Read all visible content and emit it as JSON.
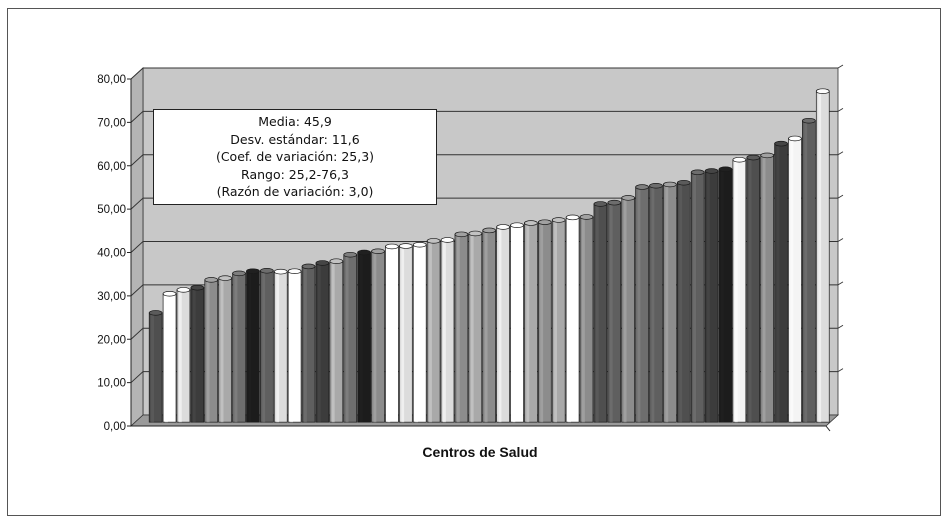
{
  "chart_data": {
    "type": "bar",
    "title": "",
    "xlabel": "Centros de Salud",
    "ylabel": "",
    "ylim": [
      0,
      80
    ],
    "yticks": [
      "0,00",
      "10,00",
      "20,00",
      "30,00",
      "40,00",
      "50,00",
      "60,00",
      "70,00",
      "80,00"
    ],
    "grid": true,
    "legend": "none",
    "values": [
      25.2,
      29.6,
      30.5,
      31.0,
      32.8,
      33.2,
      34.3,
      34.8,
      34.9,
      34.7,
      34.8,
      35.9,
      36.7,
      37.1,
      38.6,
      39.1,
      39.4,
      40.5,
      40.6,
      40.9,
      41.8,
      42.0,
      43.3,
      43.5,
      44.2,
      45.0,
      45.4,
      45.9,
      46.1,
      46.6,
      47.2,
      47.3,
      50.3,
      50.6,
      51.7,
      54.2,
      54.5,
      54.8,
      55.2,
      57.6,
      57.9,
      58.3,
      60.5,
      61.0,
      61.5,
      64.2,
      65.4,
      69.5,
      76.3
    ],
    "annotation": {
      "lines": [
        "Media: 45,9",
        "Desv. estándar: 11,6",
        "(Coef. de variación: 25,3)",
        "Rango: 25,2-76,3",
        "(Razón de variación: 3,0)"
      ]
    },
    "colors": {
      "wall": "#c8c8c8",
      "floor": "#9a9a9a",
      "gridline": "#333333",
      "bar_shades": [
        "#4f4f4f",
        "#f4f4f4",
        "#dcdcdc",
        "#3c3c3c",
        "#8c8c8c",
        "#a9a9a9",
        "#1c1c1c",
        "#5f5f5f",
        "#ffffff",
        "#6e6e6e"
      ]
    },
    "bar_color_index": [
      0,
      8,
      2,
      3,
      4,
      5,
      9,
      6,
      7,
      2,
      8,
      7,
      3,
      5,
      9,
      6,
      4,
      8,
      2,
      8,
      5,
      2,
      4,
      5,
      4,
      2,
      8,
      5,
      4,
      5,
      8,
      4,
      0,
      7,
      4,
      9,
      7,
      4,
      0,
      7,
      3,
      6,
      1,
      0,
      4,
      3,
      1,
      7,
      2
    ]
  }
}
